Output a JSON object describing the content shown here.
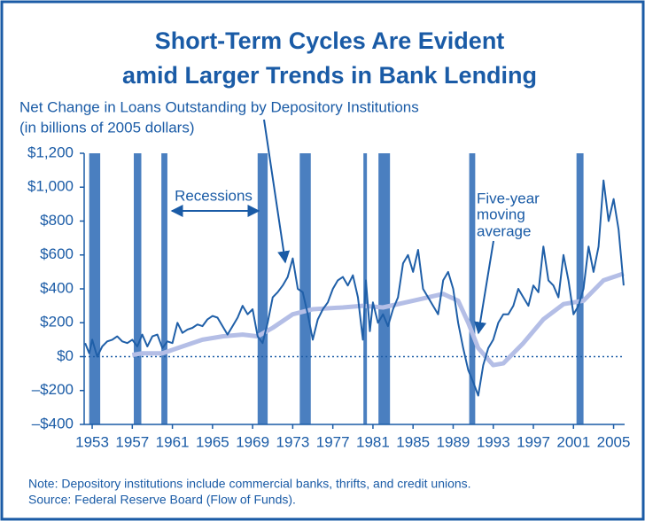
{
  "chart_data": {
    "type": "line",
    "title": [
      "Short-Term Cycles Are Evident",
      "amid Larger Trends in Bank Lending"
    ],
    "subtitle": [
      "Net Change in Loans Outstanding by Depository Institutions",
      "(in billions of 2005 dollars)"
    ],
    "xlim": [
      1952.2,
      2006.1
    ],
    "xticks": [
      1953,
      1957,
      1961,
      1965,
      1969,
      1973,
      1977,
      1981,
      1985,
      1989,
      1993,
      1997,
      2001,
      2005
    ],
    "ylim": [
      -400,
      1200
    ],
    "yticks": [
      {
        "value": -400,
        "label": "–$400"
      },
      {
        "value": -200,
        "label": "–$200"
      },
      {
        "value": 0,
        "label": "$0"
      },
      {
        "value": 200,
        "label": "$200"
      },
      {
        "value": 400,
        "label": "$400"
      },
      {
        "value": 600,
        "label": "$600"
      },
      {
        "value": 800,
        "label": "$800"
      },
      {
        "value": 1000,
        "label": "$1,000"
      },
      {
        "value": 1200,
        "label": "$1,200"
      }
    ],
    "recession_color": "#4a7fc0",
    "recessions": [
      [
        1952.7,
        1953.8
      ],
      [
        1957.15,
        1957.9
      ],
      [
        1959.9,
        1960.5
      ],
      [
        1969.5,
        1970.5
      ],
      [
        1973.7,
        1974.8
      ],
      [
        1980.05,
        1980.4
      ],
      [
        1981.55,
        1982.7
      ],
      [
        1990.6,
        1991.2
      ],
      [
        2001.3,
        2002.0
      ]
    ],
    "series": [
      {
        "color": "#1f5fa8",
        "x": [
          1952.3,
          1952.7,
          1953,
          1953.5,
          1954,
          1954.5,
          1955,
          1955.5,
          1956,
          1956.5,
          1957,
          1957.5,
          1958,
          1958.5,
          1959,
          1959.5,
          1960,
          1960.5,
          1961,
          1961.5,
          1962,
          1962.5,
          1963,
          1963.5,
          1964,
          1964.5,
          1965,
          1965.5,
          1966,
          1966.5,
          1967,
          1967.5,
          1968,
          1968.5,
          1969,
          1969.5,
          1970,
          1970.5,
          1971,
          1971.5,
          1972,
          1972.5,
          1973,
          1973.5,
          1974,
          1974.5,
          1975,
          1975.5,
          1976,
          1976.5,
          1977,
          1977.5,
          1978,
          1978.5,
          1979,
          1979.5,
          1980,
          1980.3,
          1980.7,
          1981,
          1981.5,
          1982,
          1982.5,
          1983,
          1983.5,
          1984,
          1984.5,
          1985,
          1985.5,
          1986,
          1986.5,
          1987,
          1987.5,
          1988,
          1988.5,
          1989,
          1989.5,
          1990,
          1990.5,
          1991,
          1991.5,
          1992,
          1992.5,
          1993,
          1993.5,
          1994,
          1994.5,
          1995,
          1995.5,
          1996,
          1996.5,
          1997,
          1997.5,
          1998,
          1998.5,
          1999,
          1999.5,
          2000,
          2000.5,
          2001,
          2001.5,
          2002,
          2002.5,
          2003,
          2003.5,
          2004,
          2004.5,
          2005,
          2005.5,
          2006
        ],
        "values": [
          80,
          20,
          100,
          0,
          60,
          90,
          100,
          120,
          90,
          80,
          100,
          60,
          130,
          60,
          120,
          130,
          50,
          90,
          80,
          200,
          140,
          160,
          170,
          190,
          180,
          220,
          240,
          230,
          180,
          130,
          180,
          230,
          300,
          250,
          280,
          120,
          80,
          200,
          350,
          380,
          420,
          470,
          580,
          400,
          380,
          250,
          100,
          220,
          280,
          320,
          400,
          450,
          470,
          420,
          480,
          350,
          100,
          450,
          150,
          320,
          200,
          250,
          180,
          280,
          350,
          550,
          600,
          500,
          630,
          400,
          350,
          300,
          250,
          450,
          500,
          400,
          200,
          50,
          -80,
          -150,
          -230,
          -50,
          50,
          100,
          200,
          250,
          250,
          300,
          400,
          350,
          300,
          420,
          380,
          650,
          450,
          420,
          350,
          600,
          450,
          250,
          300,
          400,
          650,
          500,
          650,
          1040,
          800,
          930,
          750,
          420
        ]
      },
      {
        "color": "#b4bee6",
        "x": [
          1957,
          1958,
          1960,
          1962,
          1964,
          1966,
          1968,
          1969.5,
          1971,
          1973,
          1975,
          1978,
          1980,
          1982,
          1985,
          1988,
          1989.5,
          1990.5,
          1991.5,
          1993,
          1994,
          1996,
          1998,
          2000,
          2002,
          2004,
          2006
        ],
        "values": [
          10,
          20,
          20,
          60,
          100,
          120,
          130,
          120,
          170,
          250,
          280,
          290,
          300,
          290,
          330,
          370,
          330,
          200,
          50,
          -50,
          -40,
          80,
          220,
          310,
          330,
          450,
          490
        ]
      }
    ],
    "annotations": [
      {
        "text": "Recessions"
      },
      {
        "lines": [
          "Five-year",
          "moving",
          "average"
        ]
      }
    ],
    "note": "Note: Depository institutions include commercial banks, thrifts, and credit unions.",
    "source": "Source: Federal Reserve Board (Flow of Funds)."
  }
}
